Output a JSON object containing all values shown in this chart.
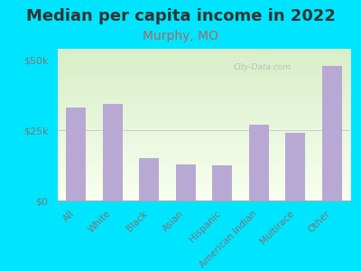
{
  "title": "Median per capita income in 2022",
  "subtitle": "Murphy, MO",
  "categories": [
    "All",
    "White",
    "Black",
    "Asian",
    "Hispanic",
    "American Indian",
    "Multirace",
    "Other"
  ],
  "values": [
    33000,
    34500,
    15000,
    13000,
    12500,
    27000,
    24000,
    48000
  ],
  "bar_color": "#b8a9d4",
  "title_fontsize": 13,
  "subtitle_fontsize": 10,
  "subtitle_color": "#aa6666",
  "title_color": "#333333",
  "background_outer": "#00e5ff",
  "grad_top": "#d8eec8",
  "grad_bottom": "#f8fff0",
  "tick_label_color": "#777777",
  "ytick_labels": [
    "$0",
    "$25k",
    "$50k"
  ],
  "yticks": [
    0,
    25000,
    50000
  ],
  "ylim": [
    0,
    54000
  ],
  "watermark": "City-Data.com"
}
